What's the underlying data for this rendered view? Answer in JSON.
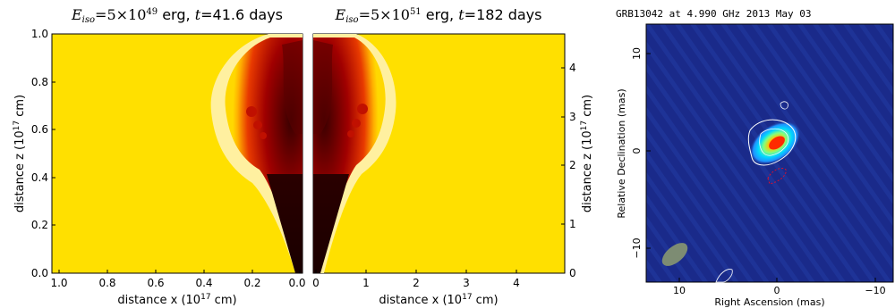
{
  "panels": {
    "left": {
      "title_var": "E",
      "title_sub": "iso",
      "title_eq": "=5×10",
      "title_exp": "49",
      "title_rest": " erg, ",
      "title_t": "t",
      "title_t_val": "=41.6 days",
      "xlabel": "distance x (10",
      "xlabel_exp": "17",
      "xlabel_unit": " cm)",
      "ylabel": "distance z (10",
      "ylabel_exp": "17",
      "ylabel_unit": " cm)",
      "xticks": [
        "1.0",
        "0.8",
        "0.6",
        "0.4",
        "0.2",
        "0.0"
      ],
      "yticks": [
        "0.0",
        "0.2",
        "0.4",
        "0.6",
        "0.8",
        "1.0"
      ]
    },
    "middle": {
      "title_var": "E",
      "title_sub": "iso",
      "title_eq": "=5×10",
      "title_exp": "51",
      "title_rest": " erg, ",
      "title_t": "t",
      "title_t_val": "=182 days",
      "xlabel": "distance x (10",
      "xlabel_exp": "17",
      "xlabel_unit": " cm)",
      "ylabel": "distance z (10",
      "ylabel_exp": "17",
      "ylabel_unit": " cm)",
      "xticks": [
        "0",
        "1",
        "2",
        "3",
        "4"
      ],
      "yticks": [
        "0",
        "1",
        "2",
        "3",
        "4"
      ]
    },
    "right": {
      "title": "GRB13042 at 4.990 GHz 2013 May 03",
      "xlabel": "Right Ascension  (mas)",
      "ylabel": "Relative Declination  (mas)",
      "xticks": [
        "10",
        "0",
        "−10"
      ],
      "yticks": [
        "10",
        "0",
        "−10"
      ]
    }
  },
  "colors": {
    "ambient": "#ffe000",
    "hot": "#cc2200",
    "dark": "#2a0000",
    "radio_bg": "#1d2f8f",
    "radio_beam": "#7d8c73"
  }
}
